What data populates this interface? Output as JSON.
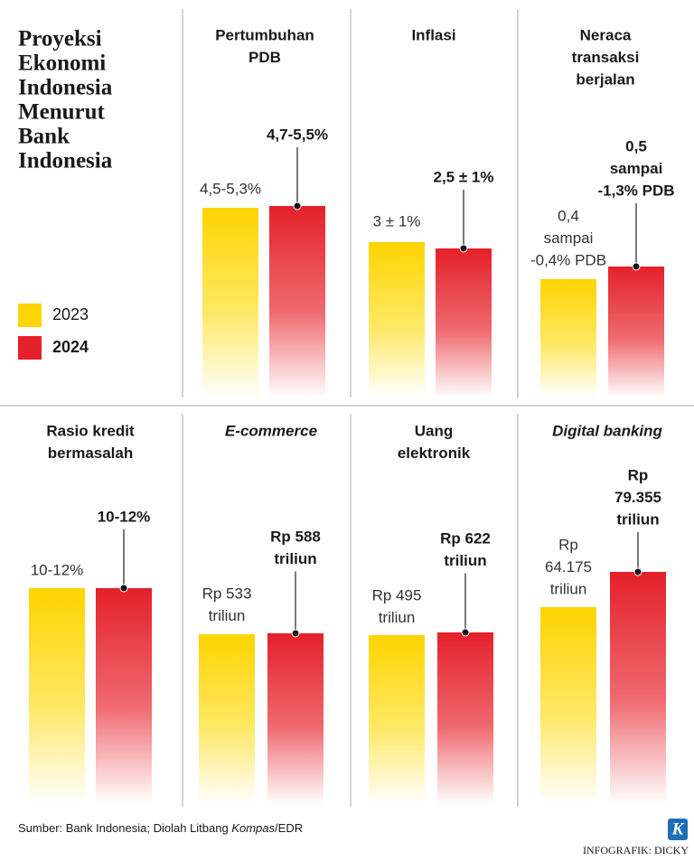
{
  "title": [
    "Proyeksi",
    "Ekonomi",
    "Indonesia",
    "Menurut",
    "Bank",
    "Indonesia"
  ],
  "legend": [
    "2023",
    "2024"
  ],
  "panels": [
    {
      "title": [
        "Pertumbuhan",
        "PDB"
      ],
      "label_2023": [
        "4,5-5,3%"
      ],
      "label_2024": [
        "4,7-5,5%"
      ]
    },
    {
      "title": [
        "Inflasi"
      ],
      "label_2023": [
        "3 ± 1%"
      ],
      "label_2024": [
        "2,5 ± 1%"
      ]
    },
    {
      "title": [
        "Neraca",
        "transaksi",
        "berjalan"
      ],
      "label_2023": [
        "0,4",
        "sampai",
        "-0,4% PDB"
      ],
      "label_2024": [
        "0,5",
        "sampai",
        "-1,3% PDB"
      ]
    },
    {
      "title": [
        "Rasio kredit",
        "bermasalah"
      ],
      "label_2023": [
        "10-12%"
      ],
      "label_2024": [
        "10-12%"
      ]
    },
    {
      "title": [
        "E-commerce"
      ],
      "label_2023": [
        "Rp 533",
        "triliun"
      ],
      "label_2024": [
        "Rp 588",
        "triliun"
      ]
    },
    {
      "title": [
        "Uang",
        "elektronik"
      ],
      "label_2023": [
        "Rp 495",
        "triliun"
      ],
      "label_2024": [
        "Rp 622",
        "triliun"
      ]
    },
    {
      "title": [
        "Digital banking"
      ],
      "label_2023": [
        "Rp",
        "64.175",
        "triliun"
      ],
      "label_2024": [
        "Rp",
        "79.355",
        "triliun"
      ]
    }
  ],
  "source": [
    "Sumber: Bank Indonesia; Diolah Litbang ",
    "Kompas",
    "/EDR"
  ],
  "credit": "INFOGRAFIK: DICKY",
  "logo": "K"
}
